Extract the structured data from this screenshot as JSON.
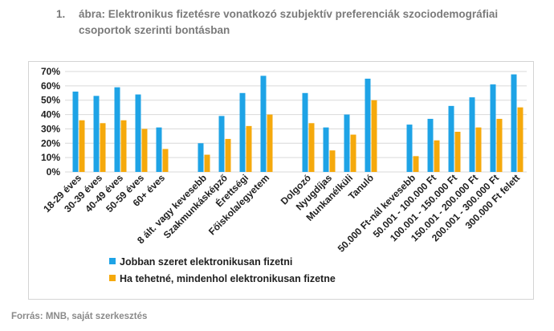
{
  "caption": {
    "number": "1.",
    "text": "ábra: Elektronikus fizetésre vonatkozó szubjektív preferenciák szociodemográfiai csoportok szerinti bontásban"
  },
  "source": "Forrás: MNB, saját szerkesztés",
  "colors": {
    "series1": "#1ea3e6",
    "series2": "#f5a90c",
    "grid": "#d9d9d9",
    "axis_text": "#1f1f1f"
  },
  "chart_data": {
    "type": "bar",
    "title": "",
    "xlabel": "",
    "ylabel": "",
    "ylim": [
      0,
      70
    ],
    "yticks": [
      "0%",
      "10%",
      "20%",
      "30%",
      "40%",
      "50%",
      "60%",
      "70%"
    ],
    "grid": true,
    "legend_position": "bottom",
    "groups": [
      [
        "18-29 éves",
        "30-39 éves",
        "40-49 éves",
        "50-59 éves",
        "60+ éves"
      ],
      [
        "8 ált. vagy kevesebb",
        "Szakmunkásképző",
        "Érettségi",
        "Főiskola/egyetem"
      ],
      [
        "Dolgozó",
        "Nyugdíjas",
        "Munkanélküli",
        "Tanuló"
      ],
      [
        "50.000 Ft-nál kevesebb",
        "50.001 - 100.000 Ft",
        "100.001 - 150.000 Ft",
        "150.001 - 200.000 Ft",
        "200.001 - 300.000 Ft",
        "300.000 Ft felett"
      ]
    ],
    "categories": [
      "18-29 éves",
      "30-39 éves",
      "40-49 éves",
      "50-59 éves",
      "60+ éves",
      "8 ált. vagy kevesebb",
      "Szakmunkásképző",
      "Érettségi",
      "Főiskola/egyetem",
      "Dolgozó",
      "Nyugdíjas",
      "Munkanélküli",
      "Tanuló",
      "50.000 Ft-nál kevesebb",
      "50.001 - 100.000 Ft",
      "100.001 - 150.000 Ft",
      "150.001 - 200.000 Ft",
      "200.001 - 300.000 Ft",
      "300.000 Ft felett"
    ],
    "series": [
      {
        "name": "Jobban szeret elektronikusan fizetni",
        "values": [
          56,
          53,
          59,
          54,
          31,
          20,
          39,
          55,
          67,
          55,
          31,
          40,
          65,
          33,
          37,
          46,
          52,
          61,
          68
        ]
      },
      {
        "name": "Ha tehetné, mindenhol elektronikusan fizetne",
        "values": [
          36,
          34,
          36,
          30,
          16,
          12,
          23,
          32,
          40,
          34,
          15,
          26,
          50,
          11,
          22,
          28,
          31,
          37,
          45
        ]
      }
    ]
  }
}
